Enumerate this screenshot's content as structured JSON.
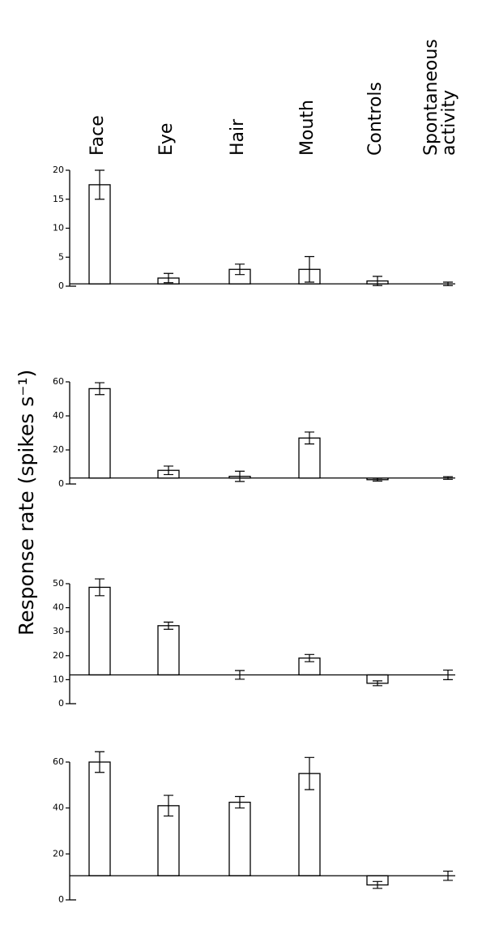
{
  "chart_data": [
    {
      "type": "bar",
      "categories": [
        "Face",
        "Eye",
        "Hair",
        "Mouth",
        "Controls",
        "Spontaneous activity"
      ],
      "ylabel": "Response rate (spikes s⁻¹)",
      "values": [
        17.5,
        1.4,
        2.9,
        2.9,
        0.9,
        0.4
      ],
      "errors": [
        2.5,
        0.8,
        0.9,
        2.2,
        0.8,
        0.3
      ],
      "ylim": [
        0,
        20
      ],
      "yticks": [
        0,
        5,
        10,
        15,
        20
      ],
      "color": "#000000"
    },
    {
      "type": "bar",
      "values": [
        56,
        8,
        4.5,
        27,
        2.5,
        3.5
      ],
      "errors": [
        3.5,
        2.5,
        3,
        3.5,
        0.8,
        0.8
      ],
      "ylim": [
        0,
        60
      ],
      "yticks": [
        0,
        20,
        40,
        60
      ],
      "color": "#000000"
    },
    {
      "type": "bar",
      "values": [
        48.5,
        32.5,
        12,
        19,
        8.5,
        12
      ],
      "errors": [
        3.5,
        1.5,
        1.8,
        1.5,
        1,
        2
      ],
      "ylim": [
        0,
        50
      ],
      "yticks": [
        0,
        10,
        20,
        30,
        40,
        50
      ],
      "color": "#000000"
    },
    {
      "type": "bar",
      "values": [
        60,
        41,
        42.5,
        55,
        6.5,
        10.5
      ],
      "errors": [
        4.5,
        4.5,
        2.5,
        7,
        1.5,
        2
      ],
      "ylim": [
        0,
        60
      ],
      "yticks": [
        0,
        20,
        40,
        60
      ],
      "color": "#000000"
    }
  ]
}
